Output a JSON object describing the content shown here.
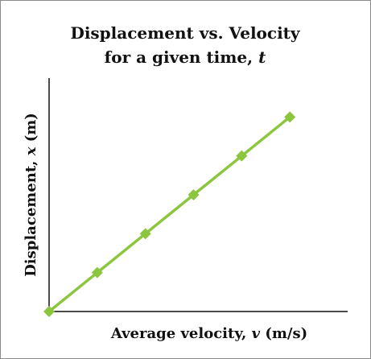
{
  "chart_data": {
    "type": "line",
    "title_line1": "Displacement vs. Velocity",
    "title_line2_prefix": "for a given time, ",
    "title_line2_var": "t",
    "xlabel_prefix": "Average velocity, ",
    "xlabel_var": "v",
    "xlabel_suffix": " (m/s)",
    "ylabel_prefix": "Displacement, ",
    "ylabel_var": "x",
    "ylabel_suffix": " (m)",
    "x": [
      0,
      1,
      2,
      3,
      4,
      5
    ],
    "y": [
      0,
      1,
      2,
      3,
      4,
      5
    ],
    "xlim": [
      0,
      6.2
    ],
    "ylim": [
      0,
      6
    ],
    "grid": false,
    "line_color": "#8cc63f",
    "marker_color": "#8cc63f",
    "marker": "diamond"
  }
}
